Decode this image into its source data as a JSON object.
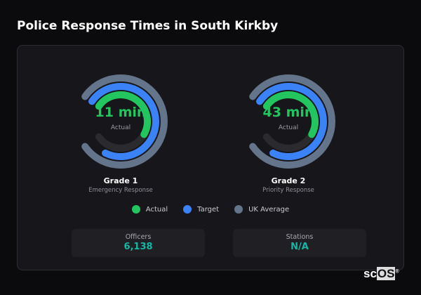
{
  "title": "Police Response Times in South Kirkby",
  "colors": {
    "actual": "#22c55e",
    "target": "#3b82f6",
    "uk_average": "#64748b",
    "track": "#2a2a2f",
    "stat_value": "#14b8a6"
  },
  "gauges": [
    {
      "value": "11 min",
      "value_label": "Actual",
      "name": "Grade 1",
      "description": "Emergency Response",
      "fill": {
        "uk_average": 1.0,
        "target": 0.9,
        "actual": 0.6
      }
    },
    {
      "value": "43 min",
      "value_label": "Actual",
      "name": "Grade 2",
      "description": "Priority Response",
      "fill": {
        "uk_average": 1.0,
        "target": 0.9,
        "actual": 0.6
      }
    }
  ],
  "legend": [
    "Actual",
    "Target",
    "UK Average"
  ],
  "stats": [
    {
      "label": "Officers",
      "value": "6,138"
    },
    {
      "label": "Stations",
      "value": "N/A"
    }
  ],
  "logo": {
    "text_a": "sc",
    "text_b": "OS",
    "mark": "®"
  }
}
